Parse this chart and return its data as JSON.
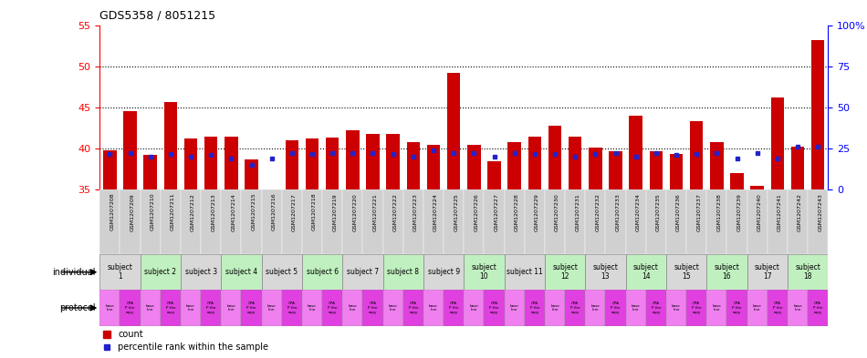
{
  "title": "GDS5358 / 8051215",
  "samples": [
    "GSM1207208",
    "GSM1207209",
    "GSM1207210",
    "GSM1207211",
    "GSM1207212",
    "GSM1207213",
    "GSM1207214",
    "GSM1207215",
    "GSM1207216",
    "GSM1207217",
    "GSM1207218",
    "GSM1207219",
    "GSM1207220",
    "GSM1207221",
    "GSM1207222",
    "GSM1207223",
    "GSM1207224",
    "GSM1207225",
    "GSM1207226",
    "GSM1207227",
    "GSM1207228",
    "GSM1207229",
    "GSM1207230",
    "GSM1207231",
    "GSM1207232",
    "GSM1207233",
    "GSM1207234",
    "GSM1207235",
    "GSM1207236",
    "GSM1207237",
    "GSM1207238",
    "GSM1207239",
    "GSM1207240",
    "GSM1207241",
    "GSM1207242",
    "GSM1207243"
  ],
  "count_values": [
    39.8,
    44.5,
    39.2,
    45.6,
    41.2,
    41.5,
    41.5,
    38.7,
    34.8,
    41.0,
    41.2,
    41.3,
    42.2,
    41.8,
    41.8,
    40.8,
    40.5,
    49.2,
    40.5,
    38.5,
    40.8,
    41.5,
    42.8,
    41.5,
    40.1,
    39.7,
    44.0,
    39.7,
    39.3,
    43.3,
    40.8,
    37.0,
    35.5,
    46.2,
    40.2,
    53.2
  ],
  "percentile_values": [
    39.3,
    39.5,
    39.0,
    39.3,
    39.0,
    39.2,
    38.8,
    38.0,
    38.8,
    39.5,
    39.3,
    39.5,
    39.5,
    39.5,
    39.3,
    39.0,
    39.8,
    39.5,
    39.5,
    39.0,
    39.5,
    39.3,
    39.3,
    39.0,
    39.3,
    39.5,
    39.0,
    39.5,
    39.2,
    39.3,
    39.5,
    38.8,
    39.5,
    38.8,
    40.2,
    40.2
  ],
  "ylim": [
    35,
    55
  ],
  "yticks_left": [
    35,
    40,
    45,
    50,
    55
  ],
  "dotted_lines": [
    40,
    45,
    50
  ],
  "right_ytick_pcts": [
    0,
    25,
    50,
    75,
    100
  ],
  "right_ylabels": [
    "0",
    "25",
    "50",
    "75",
    "100%"
  ],
  "bar_color": "#cc0000",
  "blue_color": "#2222cc",
  "bar_width": 0.65,
  "indiv_groups": [
    {
      "label": "subject\n1",
      "indices": [
        0,
        1
      ],
      "color": "#d8d8d8"
    },
    {
      "label": "subject 2",
      "indices": [
        2,
        3
      ],
      "color": "#c0f0c0"
    },
    {
      "label": "subject 3",
      "indices": [
        4,
        5
      ],
      "color": "#d8d8d8"
    },
    {
      "label": "subject 4",
      "indices": [
        6,
        7
      ],
      "color": "#c0f0c0"
    },
    {
      "label": "subject 5",
      "indices": [
        8,
        9
      ],
      "color": "#d8d8d8"
    },
    {
      "label": "subject 6",
      "indices": [
        10,
        11
      ],
      "color": "#c0f0c0"
    },
    {
      "label": "subject 7",
      "indices": [
        12,
        13
      ],
      "color": "#d8d8d8"
    },
    {
      "label": "subject 8",
      "indices": [
        14,
        15
      ],
      "color": "#c0f0c0"
    },
    {
      "label": "subject 9",
      "indices": [
        16,
        17
      ],
      "color": "#d8d8d8"
    },
    {
      "label": "subject\n10",
      "indices": [
        18,
        19
      ],
      "color": "#c0f0c0"
    },
    {
      "label": "subject 11",
      "indices": [
        20,
        21
      ],
      "color": "#d8d8d8"
    },
    {
      "label": "subject\n12",
      "indices": [
        22,
        23
      ],
      "color": "#c0f0c0"
    },
    {
      "label": "subject\n13",
      "indices": [
        24,
        25
      ],
      "color": "#d8d8d8"
    },
    {
      "label": "subject\n14",
      "indices": [
        26,
        27
      ],
      "color": "#c0f0c0"
    },
    {
      "label": "subject\n15",
      "indices": [
        28,
        29
      ],
      "color": "#d8d8d8"
    },
    {
      "label": "subject\n16",
      "indices": [
        30,
        31
      ],
      "color": "#c0f0c0"
    },
    {
      "label": "subject\n17",
      "indices": [
        32,
        33
      ],
      "color": "#d8d8d8"
    },
    {
      "label": "subject\n18",
      "indices": [
        34,
        35
      ],
      "color": "#c0f0c0"
    }
  ],
  "proto_color_even": "#f080f0",
  "proto_color_odd": "#e040e0",
  "sample_bg_color": "#d0d0d0",
  "legend_count": "count",
  "legend_pct": "percentile rank within the sample"
}
